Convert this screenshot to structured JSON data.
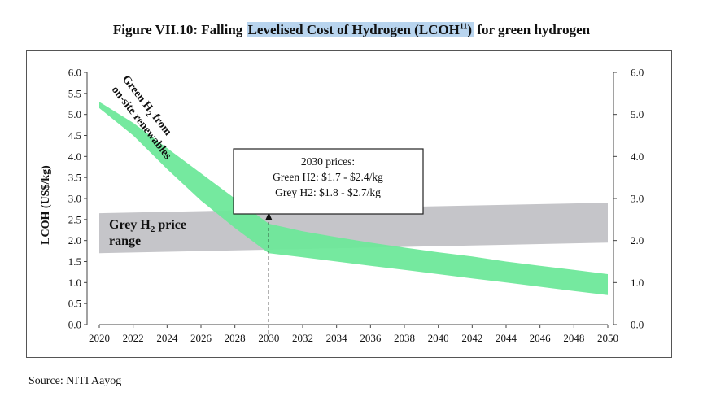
{
  "figure": {
    "title_pre": "Figure VII.10: Falling ",
    "title_highlight": "Levelised Cost of Hydrogen (LCOH",
    "title_sup": "11",
    "title_close": ")",
    "title_post": " for green hydrogen",
    "source": "Source: NITI Aayog",
    "highlight_color": "#b8d4ee"
  },
  "chart_data": {
    "type": "area",
    "ylabel": "LCOH (US$/kg)",
    "xlabel": "",
    "x_ticks": [
      "2020",
      "2022",
      "2024",
      "2026",
      "2028",
      "2030",
      "2032",
      "2034",
      "2036",
      "2038",
      "2040",
      "2042",
      "2044",
      "2046",
      "2048",
      "2050"
    ],
    "y_ticks": [
      "0.0",
      "0.5",
      "1.0",
      "1.5",
      "2.0",
      "2.5",
      "3.0",
      "3.5",
      "4.0",
      "4.5",
      "5.0",
      "5.5",
      "6.0"
    ],
    "y_ticks_right": [
      "0.0",
      "1.0",
      "2.0",
      "3.0",
      "4.0",
      "5.0",
      "6.0"
    ],
    "xlim": [
      2020,
      2050
    ],
    "ylim": [
      0,
      6
    ],
    "series": [
      {
        "name_main": "Green H",
        "name_sub": "2",
        "name_post": " from",
        "name_line2": "on-site renewables",
        "color": "#6ee89a",
        "band": [
          {
            "x": 2020,
            "low": 5.15,
            "high": 5.3
          },
          {
            "x": 2022,
            "low": 4.5,
            "high": 4.8
          },
          {
            "x": 2024,
            "low": 3.7,
            "high": 4.2
          },
          {
            "x": 2026,
            "low": 2.95,
            "high": 3.6
          },
          {
            "x": 2028,
            "low": 2.3,
            "high": 3.0
          },
          {
            "x": 2030,
            "low": 1.7,
            "high": 2.4
          },
          {
            "x": 2032,
            "low": 1.6,
            "high": 2.22
          },
          {
            "x": 2034,
            "low": 1.5,
            "high": 2.08
          },
          {
            "x": 2036,
            "low": 1.4,
            "high": 1.95
          },
          {
            "x": 2038,
            "low": 1.3,
            "high": 1.83
          },
          {
            "x": 2040,
            "low": 1.2,
            "high": 1.72
          },
          {
            "x": 2042,
            "low": 1.1,
            "high": 1.62
          },
          {
            "x": 2044,
            "low": 1.0,
            "high": 1.5
          },
          {
            "x": 2046,
            "low": 0.9,
            "high": 1.4
          },
          {
            "x": 2048,
            "low": 0.8,
            "high": 1.3
          },
          {
            "x": 2050,
            "low": 0.7,
            "high": 1.2
          }
        ]
      },
      {
        "name_main": "Grey H",
        "name_sub": "2",
        "name_post": " price",
        "name_line2": "range",
        "color": "#c5c5c9",
        "band": [
          {
            "x": 2020,
            "low": 1.7,
            "high": 2.65
          },
          {
            "x": 2050,
            "low": 1.95,
            "high": 2.9
          }
        ]
      }
    ],
    "annotation": {
      "x": 2030,
      "y": 2.65,
      "lines": [
        "2030 prices:",
        "Green H2: $1.7 - $2.4/kg",
        "Grey H2: $1.8 - $2.7/kg"
      ]
    },
    "grid": false,
    "legend": "inline labels"
  }
}
